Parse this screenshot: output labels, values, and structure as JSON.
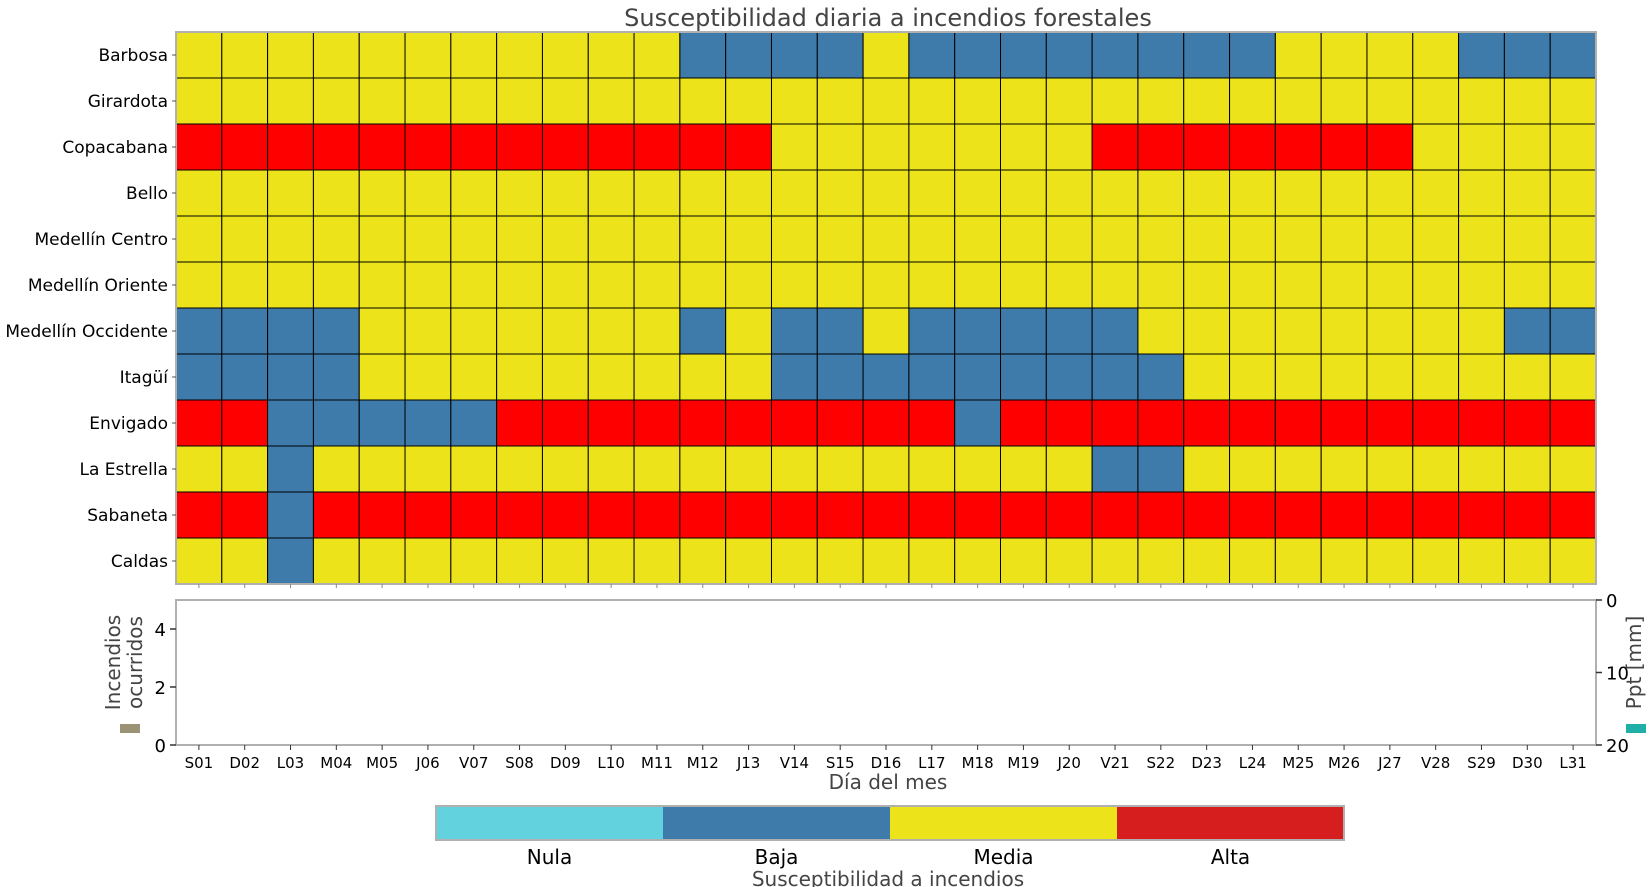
{
  "chart_data": [
    {
      "type": "heatmap",
      "title": "Susceptibilidad diaria a incendios forestales",
      "rows": [
        "Barbosa",
        "Girardota",
        "Copacabana",
        "Bello",
        "Medellín Centro",
        "Medellín Oriente",
        "Medellín Occidente",
        "Itagüí",
        "Envigado",
        "La Estrella",
        "Sabaneta",
        "Caldas"
      ],
      "columns": [
        "S01",
        "D02",
        "L03",
        "M04",
        "M05",
        "J06",
        "V07",
        "S08",
        "D09",
        "L10",
        "M11",
        "M12",
        "J13",
        "V14",
        "S15",
        "D16",
        "L17",
        "M18",
        "M19",
        "J20",
        "V21",
        "S22",
        "D23",
        "L24",
        "M25",
        "M26",
        "J27",
        "V28",
        "S29",
        "D30",
        "L31"
      ],
      "levels": [
        "Nula",
        "Baja",
        "Media",
        "Alta"
      ],
      "level_colors": [
        "#62D3DE",
        "#3E7AAA",
        "#EDE31A",
        "#FF0000"
      ],
      "values": [
        [
          2,
          2,
          2,
          2,
          2,
          2,
          2,
          2,
          2,
          2,
          2,
          1,
          1,
          1,
          1,
          2,
          1,
          1,
          1,
          1,
          1,
          1,
          1,
          1,
          2,
          2,
          2,
          2,
          1,
          1,
          1
        ],
        [
          2,
          2,
          2,
          2,
          2,
          2,
          2,
          2,
          2,
          2,
          2,
          2,
          2,
          2,
          2,
          2,
          2,
          2,
          2,
          2,
          2,
          2,
          2,
          2,
          2,
          2,
          2,
          2,
          2,
          2,
          2
        ],
        [
          3,
          3,
          3,
          3,
          3,
          3,
          3,
          3,
          3,
          3,
          3,
          3,
          3,
          2,
          2,
          2,
          2,
          2,
          2,
          2,
          3,
          3,
          3,
          3,
          3,
          3,
          3,
          2,
          2,
          2,
          2
        ],
        [
          2,
          2,
          2,
          2,
          2,
          2,
          2,
          2,
          2,
          2,
          2,
          2,
          2,
          2,
          2,
          2,
          2,
          2,
          2,
          2,
          2,
          2,
          2,
          2,
          2,
          2,
          2,
          2,
          2,
          2,
          2
        ],
        [
          2,
          2,
          2,
          2,
          2,
          2,
          2,
          2,
          2,
          2,
          2,
          2,
          2,
          2,
          2,
          2,
          2,
          2,
          2,
          2,
          2,
          2,
          2,
          2,
          2,
          2,
          2,
          2,
          2,
          2,
          2
        ],
        [
          2,
          2,
          2,
          2,
          2,
          2,
          2,
          2,
          2,
          2,
          2,
          2,
          2,
          2,
          2,
          2,
          2,
          2,
          2,
          2,
          2,
          2,
          2,
          2,
          2,
          2,
          2,
          2,
          2,
          2,
          2
        ],
        [
          1,
          1,
          1,
          1,
          2,
          2,
          2,
          2,
          2,
          2,
          2,
          1,
          2,
          1,
          1,
          2,
          1,
          1,
          1,
          1,
          1,
          2,
          2,
          2,
          2,
          2,
          2,
          2,
          2,
          1,
          1
        ],
        [
          1,
          1,
          1,
          1,
          2,
          2,
          2,
          2,
          2,
          2,
          2,
          2,
          2,
          1,
          1,
          1,
          1,
          1,
          1,
          1,
          1,
          1,
          2,
          2,
          2,
          2,
          2,
          2,
          2,
          2,
          2
        ],
        [
          3,
          3,
          1,
          1,
          1,
          1,
          1,
          3,
          3,
          3,
          3,
          3,
          3,
          3,
          3,
          3,
          3,
          1,
          3,
          3,
          3,
          3,
          3,
          3,
          3,
          3,
          3,
          3,
          3,
          3,
          3
        ],
        [
          2,
          2,
          1,
          2,
          2,
          2,
          2,
          2,
          2,
          2,
          2,
          2,
          2,
          2,
          2,
          2,
          2,
          2,
          2,
          2,
          1,
          1,
          2,
          2,
          2,
          2,
          2,
          2,
          2,
          2,
          2
        ],
        [
          3,
          3,
          1,
          3,
          3,
          3,
          3,
          3,
          3,
          3,
          3,
          3,
          3,
          3,
          3,
          3,
          3,
          3,
          3,
          3,
          3,
          3,
          3,
          3,
          3,
          3,
          3,
          3,
          3,
          3,
          3
        ],
        [
          2,
          2,
          1,
          2,
          2,
          2,
          2,
          2,
          2,
          2,
          2,
          2,
          2,
          2,
          2,
          2,
          2,
          2,
          2,
          2,
          2,
          2,
          2,
          2,
          2,
          2,
          2,
          2,
          2,
          2,
          2
        ]
      ]
    },
    {
      "type": "bar",
      "xlabel": "Día del mes",
      "ylabel_left": "Incendios\nocurridos",
      "ylabel_right": "Ppt [mm]",
      "left_ylim": [
        0,
        5
      ],
      "left_yticks": [
        0,
        2,
        4
      ],
      "right_ylim": [
        20,
        0
      ],
      "right_yticks": [
        0,
        10,
        20
      ],
      "left_series_color": "#9C9377",
      "right_series_color": "#1FAFA8",
      "incendios": [],
      "precipitacion": []
    }
  ],
  "colorbar": {
    "label": "Susceptibilidad a incendios",
    "colors": [
      "#62D3DE",
      "#3E7AAA",
      "#EDE31A",
      "#D61E1E"
    ]
  }
}
